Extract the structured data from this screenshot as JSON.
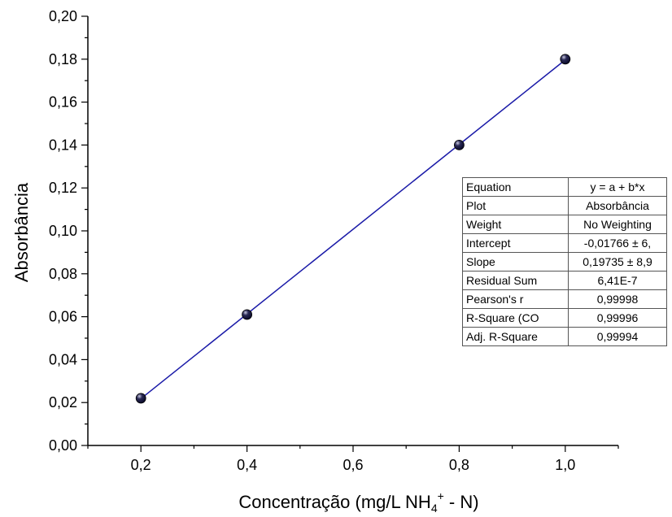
{
  "chart_data": {
    "type": "scatter",
    "xlabel": "Concentração (mg/L NH4+ - N)",
    "xlabel_parts": {
      "main": "Concentração (mg/L NH",
      "sub": "4",
      "sup": "+",
      "tail": " - N)"
    },
    "ylabel": "Absorbância",
    "xlim": [
      0.1,
      1.1
    ],
    "ylim": [
      0.0,
      0.2
    ],
    "x_ticks": [
      "0,2",
      "0,4",
      "0,6",
      "0,8",
      "1,0"
    ],
    "y_ticks": [
      "0,00",
      "0,02",
      "0,04",
      "0,06",
      "0,08",
      "0,10",
      "0,12",
      "0,14",
      "0,16",
      "0,18",
      "0,20"
    ],
    "grid": false,
    "series": [
      {
        "x": [
          0.2,
          0.4,
          0.8,
          1.0
        ],
        "y": [
          0.022,
          0.061,
          0.14,
          0.18
        ]
      }
    ],
    "fit_line": {
      "intercept": -0.01766,
      "slope": 0.19735,
      "x_range": [
        0.2,
        1.0
      ]
    },
    "colors": {
      "line": "#1a1aa8",
      "marker": "#0a0a2a"
    },
    "fit_table": [
      {
        "key": "Equation",
        "value": "y = a + b*x"
      },
      {
        "key": "Plot",
        "value": "Absorbância"
      },
      {
        "key": "Weight",
        "value": "No Weighting"
      },
      {
        "key": "Intercept",
        "value": "-0,01766 ± 6,"
      },
      {
        "key": "Slope",
        "value": "0,19735 ± 8,9"
      },
      {
        "key": "Residual Sum",
        "value": "6,41E-7"
      },
      {
        "key": "Pearson's r",
        "value": "0,99998"
      },
      {
        "key": "R-Square (CO",
        "value": "0,99996"
      },
      {
        "key": "Adj. R-Square",
        "value": "0,99994"
      }
    ]
  }
}
